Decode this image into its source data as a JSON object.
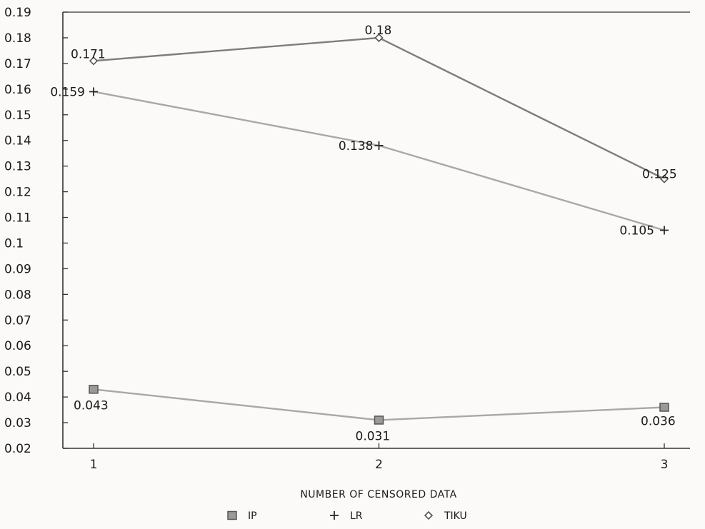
{
  "chart_data": {
    "type": "line",
    "title": "",
    "xlabel": "NUMBER OF CENSORED DATA",
    "ylabel": "",
    "x": [
      1,
      2,
      3
    ],
    "ylim": [
      0.02,
      0.19
    ],
    "yticks": [
      "0.02",
      "0.03",
      "0.04",
      "0.05",
      "0.06",
      "0.07",
      "0.08",
      "0.09",
      "0.1",
      "0.11",
      "0.12",
      "0.13",
      "0.14",
      "0.15",
      "0.16",
      "0.17",
      "0.18",
      "0.19"
    ],
    "xticks": [
      "1",
      "2",
      "3"
    ],
    "grid": false,
    "legend_position": "bottom",
    "series": [
      {
        "name": "IP",
        "marker": "square",
        "color": "#9a9a9a",
        "line_color": "#a8a8a8",
        "values": [
          0.043,
          0.031,
          0.036
        ],
        "labels": [
          "0.043",
          "0.031",
          "0.036"
        ]
      },
      {
        "name": "LR",
        "marker": "plus",
        "color": "#2a2a2a",
        "line_color": "#a8a8a8",
        "values": [
          0.159,
          0.138,
          0.105
        ],
        "labels": [
          "0.159",
          "0.138",
          "0.105"
        ]
      },
      {
        "name": "TIKU",
        "marker": "diamond",
        "color": "#555555",
        "line_color": "#7d7d7d",
        "values": [
          0.171,
          0.18,
          0.125
        ],
        "labels": [
          "0.171",
          "0.18",
          "0.125"
        ]
      }
    ]
  }
}
